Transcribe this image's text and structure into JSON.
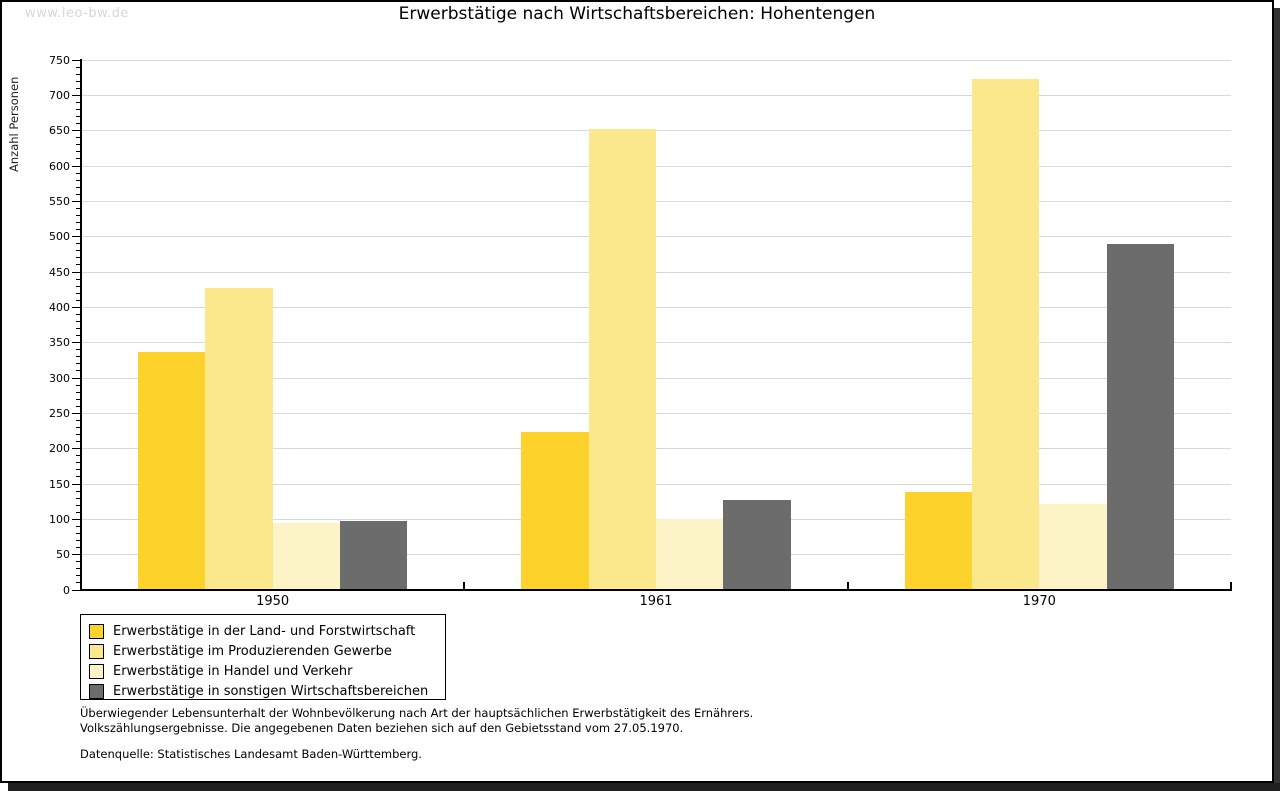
{
  "watermark": "www.leo-bw.de",
  "title": "Erwerbstätige nach Wirtschaftsbereichen: Hohentengen",
  "chart_data": {
    "type": "bar",
    "title": "Erwerbstätige nach Wirtschaftsbereichen: Hohentengen",
    "categories": [
      "1950",
      "1961",
      "1970"
    ],
    "series": [
      {
        "name": "Erwerbstätige in der Land- und Forstwirtschaft",
        "color": "#fcd22b",
        "values": [
          337,
          224,
          138
        ]
      },
      {
        "name": "Erwerbstätige im Produzierenden Gewerbe",
        "color": "#fbe88c",
        "values": [
          427,
          653,
          723
        ]
      },
      {
        "name": "Erwerbstätige in Handel und Verkehr",
        "color": "#fcf4c6",
        "values": [
          95,
          101,
          122
        ]
      },
      {
        "name": "Erwerbstätige in sonstigen Wirtschaftsbereichen",
        "color": "#6c6c6c",
        "values": [
          98,
          128,
          489
        ]
      }
    ],
    "xlabel": "",
    "ylabel": "Anzahl Personen",
    "ylim": [
      0,
      750
    ],
    "ytick_step": 50,
    "yminor_step": 10,
    "grid": true,
    "grid_color": "#d9d9d9",
    "axis_color": "#000000",
    "legend_position": "bottom-left"
  },
  "footnotes": {
    "line1": "Überwiegender Lebensunterhalt der Wohnbevölkerung nach Art der hauptsächlichen Erwerbstätigkeit des Ernährers.",
    "line2": "Volkszählungsergebnisse. Die angegebenen Daten beziehen sich auf den Gebietsstand vom 27.05.1970.",
    "source": "Datenquelle: Statistisches Landesamt Baden-Württemberg."
  }
}
